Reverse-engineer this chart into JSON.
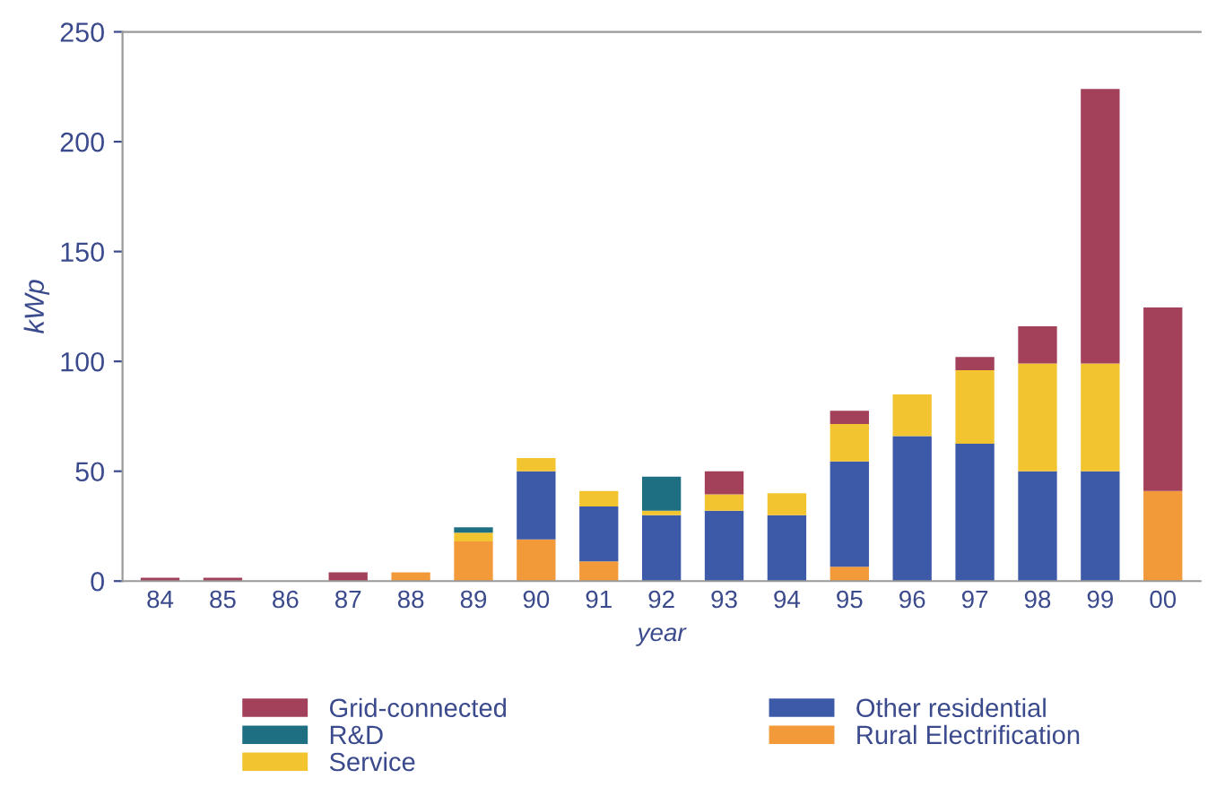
{
  "chart_data": {
    "type": "bar",
    "stacked": true,
    "xlabel": "year",
    "ylabel": "kWp",
    "categories": [
      "84",
      "85",
      "86",
      "87",
      "88",
      "89",
      "90",
      "91",
      "92",
      "93",
      "94",
      "95",
      "96",
      "97",
      "98",
      "99",
      "00"
    ],
    "series": [
      {
        "name": "Rural Electrification",
        "color": "#f29a3a",
        "values": [
          0,
          0,
          0,
          0,
          4,
          18,
          19,
          9,
          0,
          0,
          0,
          6.5,
          0,
          0,
          0,
          0,
          41
        ]
      },
      {
        "name": "Other residential",
        "color": "#3d5aa8",
        "values": [
          0,
          0,
          0,
          0,
          0,
          0,
          31,
          25,
          30,
          32,
          30,
          48,
          66,
          62.5,
          50,
          50,
          0
        ]
      },
      {
        "name": "Service",
        "color": "#f2c530",
        "values": [
          0,
          0,
          0,
          0,
          0,
          4,
          6,
          7,
          2,
          7.5,
          10,
          17,
          19,
          33.5,
          49,
          49,
          0
        ]
      },
      {
        "name": "R&D",
        "color": "#1f6f82",
        "values": [
          0,
          0,
          0,
          0,
          0,
          2.5,
          0,
          0,
          15.5,
          0,
          0,
          0,
          0,
          0,
          0,
          0,
          0
        ]
      },
      {
        "name": "Grid-connected",
        "color": "#a3405a",
        "values": [
          1.5,
          1.5,
          0,
          4,
          0,
          0,
          0,
          0,
          0,
          10.5,
          0,
          6,
          0,
          6,
          17,
          125,
          83.5
        ]
      }
    ],
    "ylim": [
      0,
      250
    ],
    "yticks": [
      0,
      50,
      100,
      150,
      200,
      250
    ],
    "grid": false,
    "legend": "bottom"
  }
}
